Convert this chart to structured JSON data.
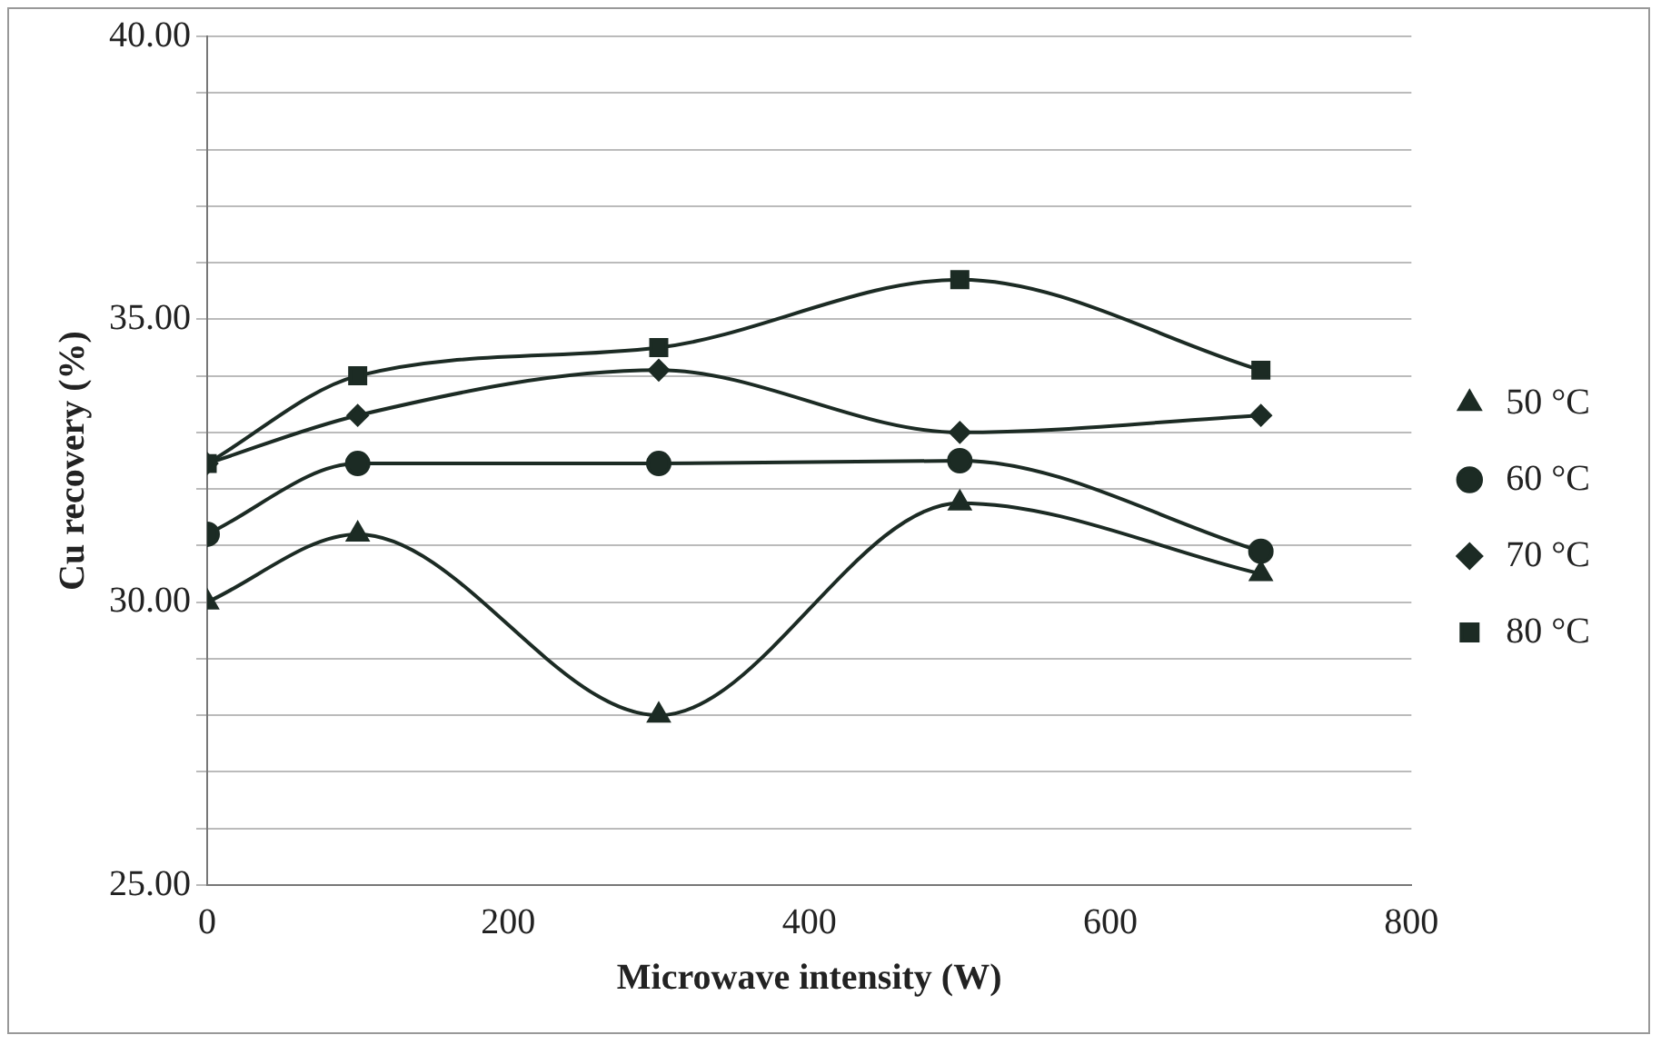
{
  "chart_data": {
    "type": "line",
    "xlabel": "Microwave intensity (W)",
    "ylabel": "Cu recovery (%)",
    "x": [
      0,
      100,
      300,
      500,
      700
    ],
    "series": [
      {
        "name": "50 °C",
        "color": "#1c2b24",
        "marker": "triangle",
        "values": [
          30.0,
          31.2,
          28.0,
          31.75,
          30.5
        ]
      },
      {
        "name": "60 °C",
        "color": "#1c2b24",
        "marker": "circle",
        "values": [
          31.2,
          32.45,
          32.45,
          32.5,
          30.9
        ]
      },
      {
        "name": "70 °C",
        "color": "#1c2b24",
        "marker": "diamond",
        "values": [
          32.45,
          33.3,
          34.1,
          33.0,
          33.3
        ]
      },
      {
        "name": "80 °C",
        "color": "#1c2b24",
        "marker": "square",
        "values": [
          32.45,
          34.0,
          34.5,
          35.7,
          34.1
        ]
      }
    ],
    "xlim": [
      0,
      800
    ],
    "xticks": [
      0,
      200,
      400,
      600,
      800
    ],
    "ylim": [
      25,
      40
    ],
    "yticks": [
      {
        "value": 25,
        "label": "25.00"
      },
      {
        "value": 26,
        "label": null
      },
      {
        "value": 27,
        "label": null
      },
      {
        "value": 28,
        "label": null
      },
      {
        "value": 29,
        "label": null
      },
      {
        "value": 30,
        "label": "30.00"
      },
      {
        "value": 31,
        "label": null
      },
      {
        "value": 32,
        "label": null
      },
      {
        "value": 33,
        "label": null
      },
      {
        "value": 34,
        "label": null
      },
      {
        "value": 35,
        "label": "35.00"
      },
      {
        "value": 36,
        "label": null
      },
      {
        "value": 37,
        "label": null
      },
      {
        "value": 38,
        "label": null
      },
      {
        "value": 39,
        "label": null
      },
      {
        "value": 40,
        "label": "40.00"
      }
    ],
    "grid": "y",
    "legend": "right",
    "line_style": "solid"
  }
}
